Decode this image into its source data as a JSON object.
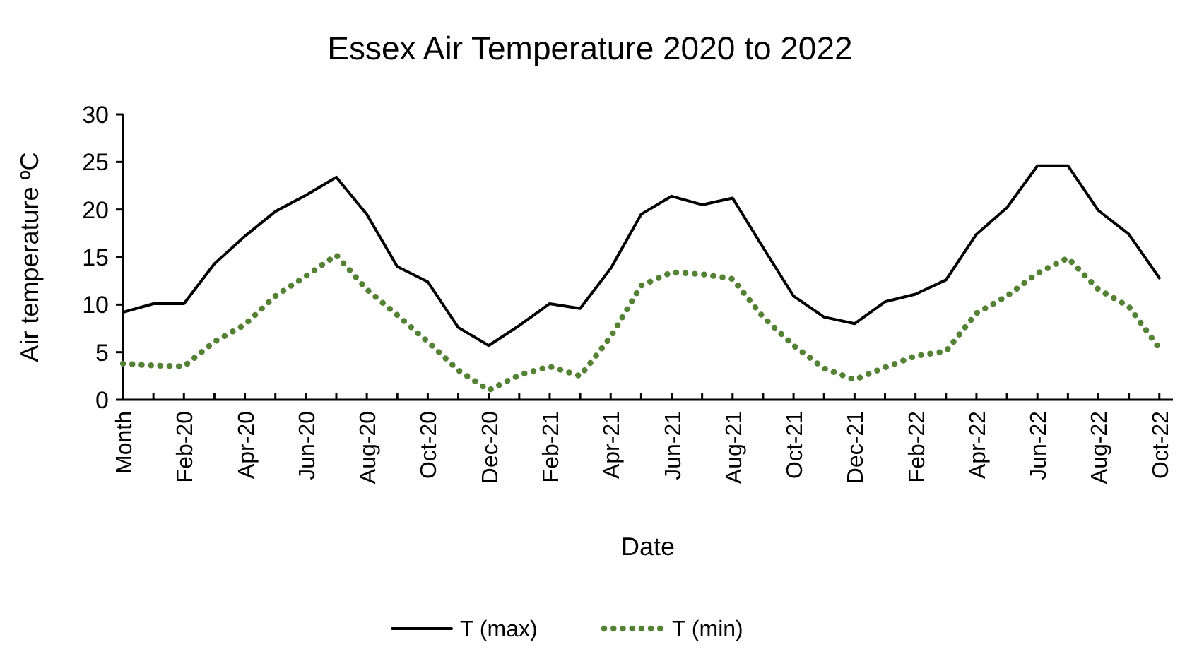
{
  "chart_data": {
    "type": "line",
    "title": "Essex Air Temperature 2020 to 2022",
    "xlabel": "Date",
    "ylabel": "Air temperature ºC",
    "categories": [
      "Month",
      null,
      "Feb-20",
      null,
      "Apr-20",
      null,
      "Jun-20",
      null,
      "Aug-20",
      null,
      "Oct-20",
      null,
      "Dec-20",
      null,
      "Feb-21",
      null,
      "Apr-21",
      null,
      "Jun-21",
      null,
      "Aug-21",
      null,
      "Oct-21",
      null,
      "Dec-21",
      null,
      "Feb-22",
      null,
      "Apr-22",
      null,
      "Jun-22",
      null,
      "Aug-22",
      null,
      "Oct-22"
    ],
    "series": [
      {
        "name": "T (max)",
        "color": "#000000",
        "line_style": "solid",
        "values": [
          9.2,
          10.1,
          10.1,
          14.3,
          17.2,
          19.8,
          21.5,
          23.4,
          19.5,
          14.0,
          12.4,
          7.6,
          5.7,
          7.8,
          10.1,
          9.6,
          13.8,
          19.5,
          21.4,
          20.5,
          21.2,
          16.0,
          10.9,
          8.7,
          8.0,
          10.3,
          11.1,
          12.6,
          17.4,
          20.2,
          24.6,
          24.6,
          19.9,
          17.4,
          12.8
        ]
      },
      {
        "name": "T (min)",
        "color": "#548235",
        "line_style": "dotted",
        "values": [
          3.8,
          3.6,
          3.5,
          6.1,
          7.9,
          10.9,
          13.0,
          15.2,
          11.6,
          8.9,
          6.1,
          3.1,
          1.0,
          2.6,
          3.5,
          2.5,
          6.6,
          12.0,
          13.4,
          13.2,
          12.7,
          8.7,
          5.7,
          3.3,
          2.1,
          3.4,
          4.6,
          5.1,
          9.1,
          10.9,
          13.3,
          14.9,
          11.6,
          9.8,
          5.4
        ]
      }
    ],
    "ylim": [
      0,
      30
    ],
    "yticks": [
      0,
      5,
      10,
      15,
      20,
      25,
      30
    ],
    "grid": false,
    "legend": "bottom",
    "marker": "none"
  }
}
